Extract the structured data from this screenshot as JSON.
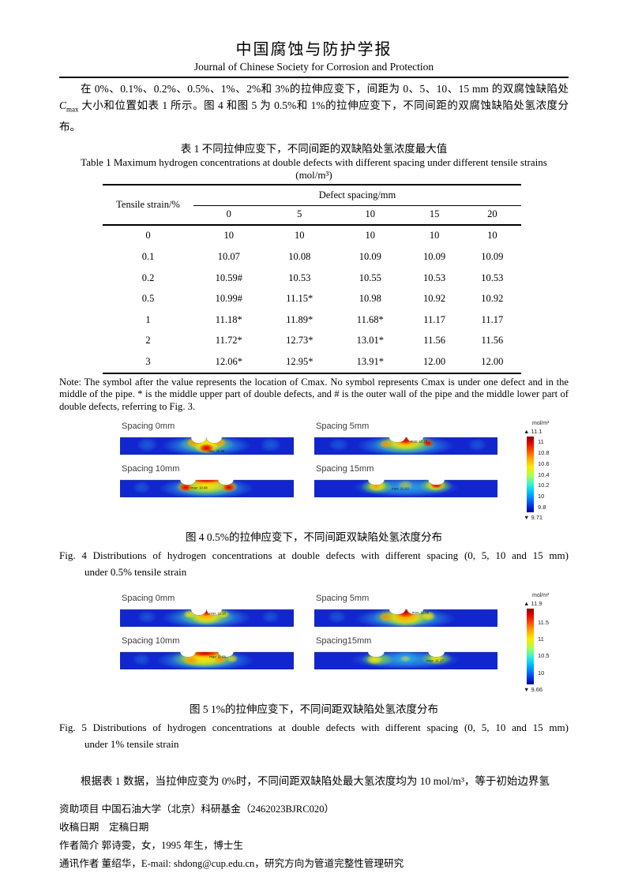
{
  "header": {
    "journal_cn": "中国腐蚀与防护学报",
    "journal_en": "Journal of Chinese Society for Corrosion and Protection"
  },
  "intro": {
    "pre": "在 0%、0.1%、0.2%、0.5%、1%、2%和 3%的拉伸应变下，间距为 0、5、10、15 mm 的双腐蚀缺陷处 ",
    "cvar": "C",
    "csub": "max",
    "post": " 大小和位置如表 1 所示。图 4 和图 5 为 0.5%和 1%的拉伸应变下，不同间距的双腐蚀缺陷处氢浓度分布。"
  },
  "table": {
    "caption_cn": "表 1 不同拉伸应变下，不同间距的双缺陷处氢浓度最大值",
    "caption_en": "Table 1 Maximum hydrogen concentrations at double defects with different spacing under different tensile strains",
    "unit": "(mol/m³)",
    "row_header": "Tensile strain/%",
    "col_group_header": "Defect spacing/mm",
    "col_headers": [
      "0",
      "5",
      "10",
      "15",
      "20"
    ],
    "rows": [
      {
        "strain": "0",
        "values": [
          "10",
          "10",
          "10",
          "10",
          "10"
        ]
      },
      {
        "strain": "0.1",
        "values": [
          "10.07",
          "10.08",
          "10.09",
          "10.09",
          "10.09"
        ]
      },
      {
        "strain": "0.2",
        "values": [
          "10.59#",
          "10.53",
          "10.55",
          "10.53",
          "10.53"
        ]
      },
      {
        "strain": "0.5",
        "values": [
          "10.99#",
          "11.15*",
          "10.98",
          "10.92",
          "10.92"
        ]
      },
      {
        "strain": "1",
        "values": [
          "11.18*",
          "11.89*",
          "11.68*",
          "11.17",
          "11.17"
        ]
      },
      {
        "strain": "2",
        "values": [
          "11.72*",
          "12.73*",
          "13.01*",
          "11.56",
          "11.56"
        ]
      },
      {
        "strain": "3",
        "values": [
          "12.06*",
          "12.95*",
          "13.91*",
          "12.00",
          "12.00"
        ]
      }
    ],
    "note": "Note: The symbol after the value represents the location of Cmax. No symbol represents Cmax is under one defect and in the middle of the pipe. * is the middle upper part of double defects, and # is the outer wall of the pipe and the middle lower part of double defects, referring to Fig. 3."
  },
  "figure4": {
    "panels": [
      {
        "label": "Spacing 0mm",
        "max_label": "max: 10.99"
      },
      {
        "label": "Spacing 5mm",
        "max_label": "max: 11.15"
      },
      {
        "label": "Spacing 10mm",
        "max_label": "max: 10.98"
      },
      {
        "label": "Spacing 15mm",
        "max_label": "max: 10.92"
      }
    ],
    "colorbar": {
      "unit": "mol/m³",
      "max": "11.1",
      "ticks": [
        "11",
        "10.8",
        "10.6",
        "10.4",
        "10.2",
        "10",
        "9.8"
      ],
      "min": "9.71"
    },
    "caption_cn": "图 4 0.5%的拉伸应变下，不同间距双缺陷处氢浓度分布",
    "caption_en_line1": "Fig. 4 Distributions of hydrogen concentrations at double defects with different spacing (0, 5, 10 and 15 mm)",
    "caption_en_line2": "under 0.5% tensile strain"
  },
  "figure5": {
    "panels": [
      {
        "label": "Spacing 0mm",
        "max_label": "max: 11.18"
      },
      {
        "label": "Spacing 5mm",
        "max_label": "max: 11.89"
      },
      {
        "label": "Spacing 10mm",
        "max_label": "max: 11.68"
      },
      {
        "label": "Spacing15mm",
        "max_label": "max: 11.17"
      }
    ],
    "colorbar": {
      "unit": "mol/m³",
      "max": "11.9",
      "ticks": [
        "11.5",
        "11",
        "10.5",
        "10"
      ],
      "min": "9.66"
    },
    "caption_cn": "图 5 1%的拉伸应变下，不同间距双缺陷处氢浓度分布",
    "caption_en_line1": "Fig. 5 Distributions of hydrogen concentrations at double defects with different spacing (0, 5, 10 and 15 mm)",
    "caption_en_line2": "under 1% tensile strain"
  },
  "closing_paragraph": "根据表 1 数据，当拉伸应变为 0%时，不同间距双缺陷处最大氢浓度均为 10 mol/m³，等于初始边界氢",
  "footnotes": [
    "资助项目  中国石油大学（北京）科研基金（2462023BJRC020）",
    "收稿日期　定稿日期",
    "作者简介  郭诗雯，女，1995 年生，博士生",
    "通讯作者  董绍华，E-mail: shdong@cup.edu.cn，研究方向为管道完整性管理研究"
  ]
}
